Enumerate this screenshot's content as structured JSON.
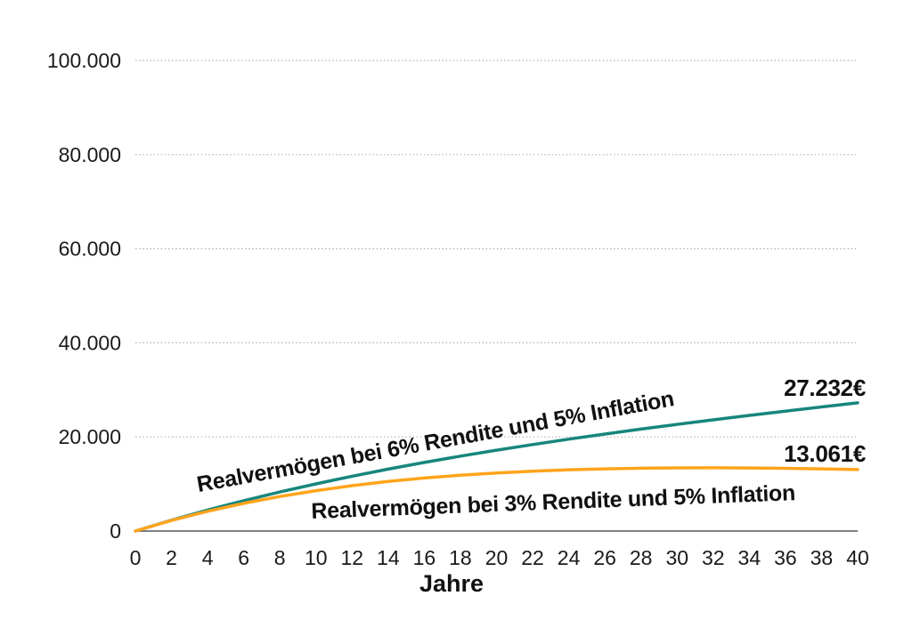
{
  "chart_data": {
    "type": "line",
    "title": "",
    "xlabel": "Jahre",
    "ylabel": "",
    "xlim": [
      0,
      40
    ],
    "ylim": [
      0,
      100000
    ],
    "grid": "horizontal dotted gridlines",
    "legend": "inline rotated labels on curves",
    "x_ticks": [
      0,
      2,
      4,
      6,
      8,
      10,
      12,
      14,
      16,
      18,
      20,
      22,
      24,
      26,
      28,
      30,
      32,
      34,
      36,
      38,
      40
    ],
    "y_ticks": [
      {
        "value": 0,
        "label": "0"
      },
      {
        "value": 20000,
        "label": "20.000"
      },
      {
        "value": 40000,
        "label": "40.000"
      },
      {
        "value": 60000,
        "label": "60.000"
      },
      {
        "value": 80000,
        "label": "80.000"
      },
      {
        "value": 100000,
        "label": "100.000"
      }
    ],
    "x": [
      0,
      2,
      4,
      6,
      8,
      10,
      12,
      14,
      16,
      18,
      20,
      22,
      24,
      26,
      28,
      30,
      32,
      34,
      36,
      38,
      40
    ],
    "series": [
      {
        "name": "Realvermögen bei 6% Rendite und 5% Inflation",
        "color": "#17867C",
        "end_label": "27.232€",
        "end_value": 27232,
        "values": [
          0,
          2315,
          4459,
          6448,
          8299,
          10024,
          11637,
          13148,
          14569,
          15909,
          17175,
          18375,
          19518,
          20609,
          21655,
          22660,
          23629,
          24567,
          25478,
          26365,
          27232
        ]
      },
      {
        "name": "Realvermögen bei 3% Rendite und 5% Inflation",
        "color": "#FFA41C",
        "end_label": "13.061€",
        "end_value": 13061,
        "values": [
          0,
          2245,
          4197,
          5886,
          7339,
          8582,
          9637,
          10523,
          11261,
          11864,
          12349,
          12729,
          13017,
          13222,
          13354,
          13423,
          13436,
          13400,
          13322,
          13207,
          13061
        ]
      }
    ]
  },
  "colors": {
    "series_6pct": "#17867C",
    "series_3pct": "#FFA41C",
    "axis": "#808080",
    "gridline": "#b2b2b2",
    "text": "#111111"
  }
}
